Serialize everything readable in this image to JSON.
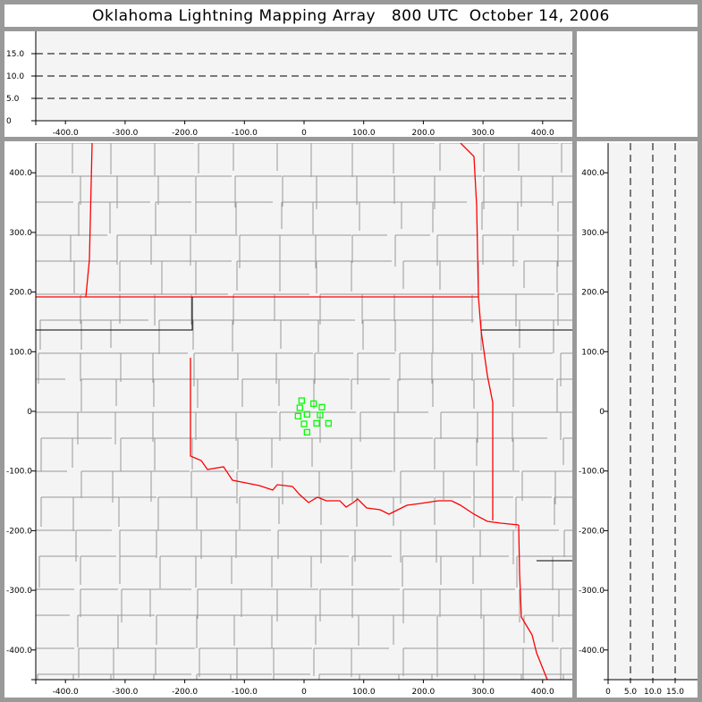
{
  "title": "Oklahoma Lightning Mapping Array   800 UTC  October 14, 2006",
  "top_panel": {
    "y_ticks": [
      "0",
      "5.0",
      "10.0",
      "15.0"
    ],
    "x_ticks": [
      "-400.0",
      "-300.0",
      "-200.0",
      "-100.0",
      "0",
      "100.0",
      "200.0",
      "300.0",
      "400.0"
    ]
  },
  "map_panel": {
    "x_ticks": [
      "-400.0",
      "-300.0",
      "-200.0",
      "-100.0",
      "0",
      "100.0",
      "200.0",
      "300.0",
      "400.0"
    ],
    "y_ticks": [
      "400.0",
      "300.0",
      "200.0",
      "100.0",
      "0",
      "-100.0",
      "-200.0",
      "-300.0",
      "-400.0"
    ]
  },
  "side_panel": {
    "x_ticks": [
      "0",
      "5.0",
      "10.0",
      "15.0"
    ],
    "y_ticks": [
      "400.0",
      "300.0",
      "200.0",
      "100.0",
      "0",
      "-100.0",
      "-200.0",
      "-300.0",
      "-400.0"
    ]
  },
  "colors": {
    "state_border": "#ff0000",
    "county_line": "#999999",
    "source_marker": "#00ff00",
    "plot_bg": "#f4f4f4"
  },
  "chart_data": {
    "type": "scatter",
    "x_range_km": [
      -450,
      450
    ],
    "y_range_km": [
      -450,
      450
    ],
    "height_range_km": [
      0,
      20
    ],
    "height_gridlines_km": [
      5,
      10,
      15
    ],
    "marker": "hollow-square",
    "sources": [
      {
        "x": -4,
        "y": 18
      },
      {
        "x": 16,
        "y": 13
      },
      {
        "x": 30,
        "y": 7
      },
      {
        "x": -7,
        "y": 6
      },
      {
        "x": -10,
        "y": -8
      },
      {
        "x": 5,
        "y": -5
      },
      {
        "x": 27,
        "y": -6
      },
      {
        "x": 0,
        "y": -21
      },
      {
        "x": 21,
        "y": -20
      },
      {
        "x": 41,
        "y": -20
      },
      {
        "x": 5,
        "y": -35
      }
    ]
  }
}
